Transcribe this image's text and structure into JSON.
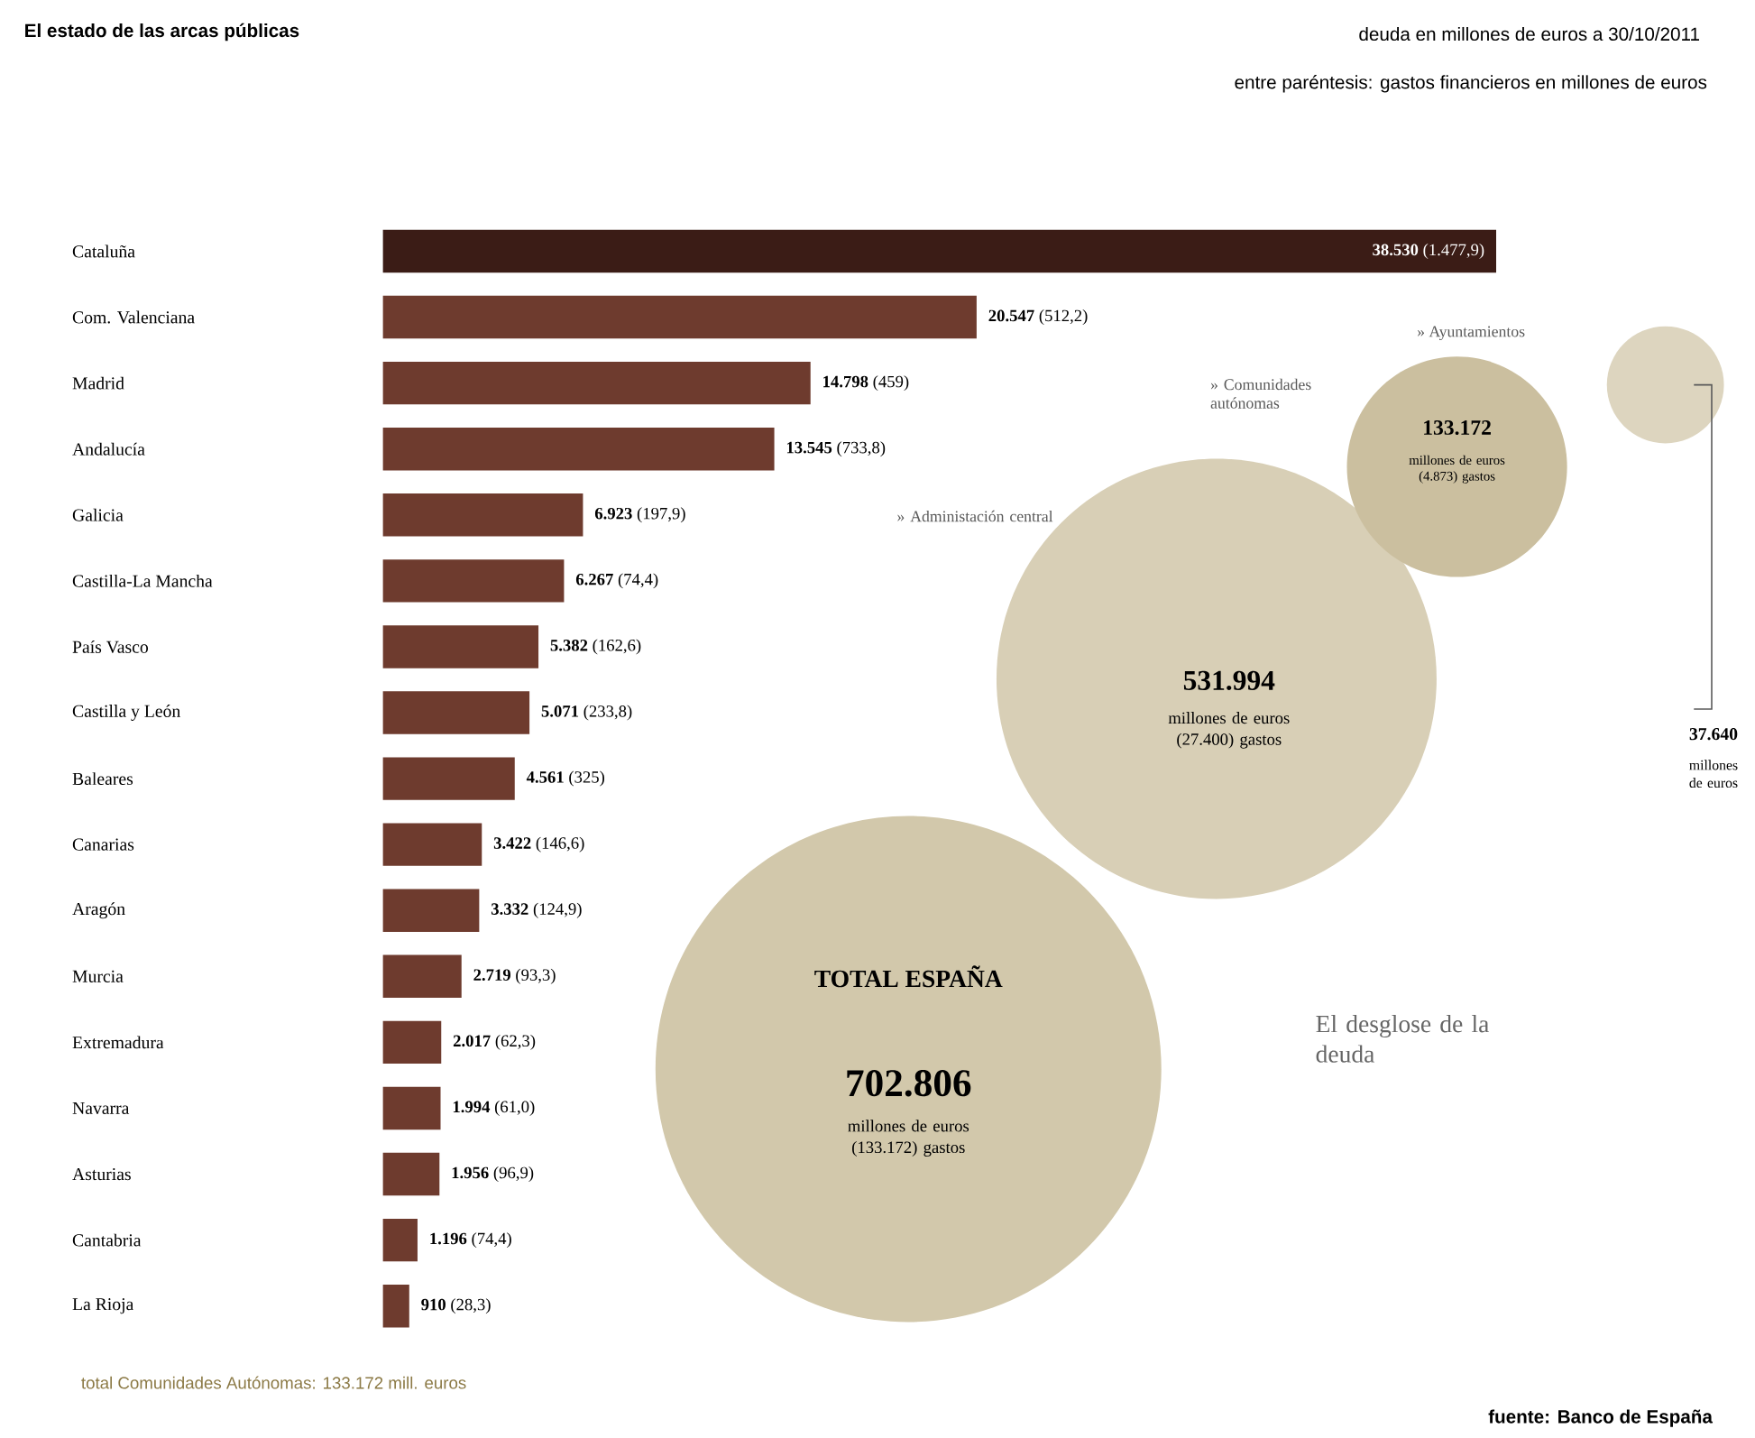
{
  "chart_data": [
    {
      "type": "bar",
      "orientation": "horizontal",
      "title": "El estado de las arcas públicas",
      "subtitle": "deuda en millones de euros a 30/10/2011",
      "categories": [
        "Cataluña",
        "Com. Valenciana",
        "Madrid",
        "Andalucía",
        "Galicia",
        "Castilla-La Mancha",
        "País Vasco",
        "Castilla y León",
        "Baleares",
        "Canarias",
        "Aragón",
        "Murcia",
        "Extremadura",
        "Navarra",
        "Asturias",
        "Cantabria",
        "La Rioja"
      ],
      "values": [
        38530,
        20547,
        14798,
        13545,
        6923,
        6267,
        5382,
        5071,
        4561,
        3422,
        3332,
        2719,
        2017,
        1994,
        1956,
        1196,
        910
      ],
      "value_labels": [
        "**38.530** (1.477,9)",
        "**20.547** (512,2)",
        "**14.798** (459)",
        "**13.545** (733,8)",
        "**6.923** (197,9)",
        "**6.267** (74,4)",
        "**5.382** (162,6)",
        "**5.071** (233,8)",
        "**4.561** (325)",
        "**3.422** (146,6)",
        "**3.332** (124,9)",
        "**2.719** (93,3)",
        "**2.017** (62,3)",
        "**1.994** (61,0)",
        "**1.956** (96,9)",
        "**1.196** (74,4)",
        "**910** (28,3)"
      ],
      "colors": [
        "#3b1c16",
        "#6e3b2e",
        "#6e3b2e",
        "#6e3b2e",
        "#6e3b2e",
        "#6e3b2e",
        "#6e3b2e",
        "#6e3b2e",
        "#6e3b2e",
        "#6e3b2e",
        "#6e3b2e",
        "#6e3b2e",
        "#6e3b2e",
        "#6e3b2e",
        "#6e3b2e",
        "#6e3b2e",
        "#6e3b2e"
      ],
      "annotations": [
        "entre paréntesis: gastos financieros en millones de euros",
        "total Comunidades Autónomas: 133.172 mill. euros",
        "fuente: Banco de España"
      ]
    },
    {
      "type": "other",
      "title": "El desglose de la deuda",
      "categories": [
        "TOTAL ESPAÑA",
        "» Administación central",
        "» Comunidades autónomas",
        "» Ayuntamientos"
      ],
      "values": [
        702806,
        531994,
        133172,
        37640
      ],
      "value_labels": [
        "702.806",
        "531.994",
        "133.172",
        "37.640"
      ],
      "colors": [
        "#d2c8ab",
        "#d8cfb6",
        "#cbbf9f",
        "#ddd5bf"
      ],
      "annotations": [
        "millones de euros (133.172) gastos",
        "millones de euros (27.400) gastos",
        "millones de euros (4.873) gastos",
        "millones de euros"
      ]
    }
  ]
}
